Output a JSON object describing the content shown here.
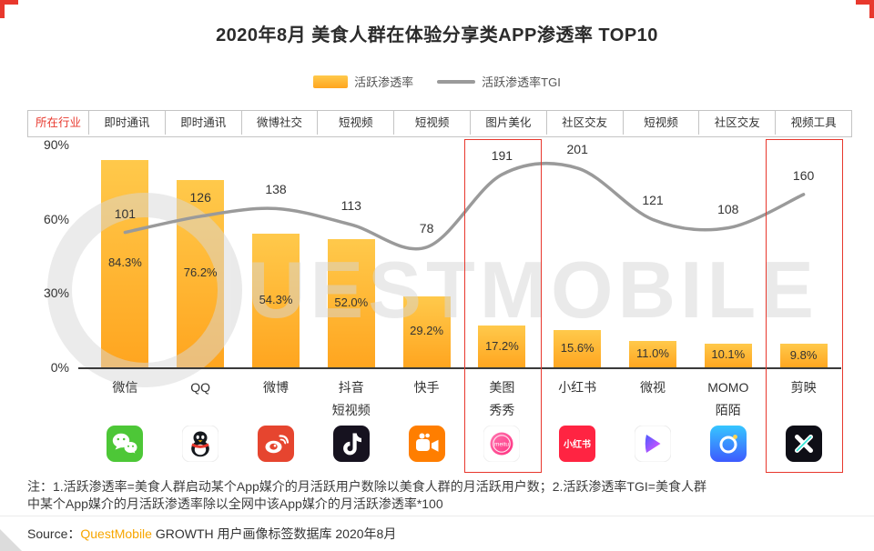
{
  "slide": {
    "title": "2020年8月 美食人群在体验分享类APP渗透率 TOP10",
    "watermark": "QUESTMOBILE",
    "note_lines": [
      "注：1.活跃渗透率=美食人群启动某个App媒介的月活跃用户数除以美食人群的月活跃用户数；2.活跃渗透率TGI=美食人群",
      "中某个App媒介的月活跃渗透率除以全网中该App媒介的月活跃渗透率*100"
    ],
    "source_prefix": "Source：",
    "source_brand": "QuestMobile",
    "source_suffix": " GROWTH 用户画像标签数据库 2020年8月"
  },
  "legend": {
    "bar_label": "活跃渗透率",
    "line_label": "活跃渗透率TGI"
  },
  "industry_row": {
    "label": "所在行业",
    "cells": [
      "即时通讯",
      "即时通讯",
      "微博社交",
      "短视频",
      "短视频",
      "图片美化",
      "社区交友",
      "短视频",
      "社区交友",
      "视频工具"
    ]
  },
  "chart_data": {
    "type": "bar",
    "title": "2020年8月 美食人群在体验分享类APP渗透率 TOP10",
    "categories": [
      "微信",
      "QQ",
      "微博",
      "抖音短视频",
      "快手",
      "美图秀秀",
      "小红书",
      "微视",
      "MOMO陌陌",
      "剪映"
    ],
    "category_display_lines": [
      [
        "微信"
      ],
      [
        "QQ"
      ],
      [
        "微博"
      ],
      [
        "抖音",
        "短视频"
      ],
      [
        "快手"
      ],
      [
        "美图",
        "秀秀"
      ],
      [
        "小红书"
      ],
      [
        "微视"
      ],
      [
        "MOMO",
        "陌陌"
      ],
      [
        "剪映"
      ]
    ],
    "app_keys": [
      "wechat",
      "qq",
      "weibo",
      "douyin",
      "kuaishou",
      "meitu",
      "xiaohongshu",
      "weishi",
      "momo",
      "jianying"
    ],
    "series": [
      {
        "name": "活跃渗透率",
        "type": "bar",
        "unit": "%",
        "values": [
          84.3,
          76.2,
          54.3,
          52.0,
          29.2,
          17.2,
          15.6,
          11.0,
          10.1,
          9.8
        ],
        "labels": [
          "84.3%",
          "76.2%",
          "54.3%",
          "52.0%",
          "29.2%",
          "17.2%",
          "15.6%",
          "11.0%",
          "10.1%",
          "9.8%"
        ]
      },
      {
        "name": "活跃渗透率TGI",
        "type": "line",
        "values": [
          101,
          126,
          138,
          113,
          78,
          191,
          201,
          121,
          108,
          160
        ],
        "labels": [
          "101",
          "126",
          "138",
          "113",
          "78",
          "191",
          "201",
          "121",
          "108",
          "160"
        ]
      }
    ],
    "y_axis": {
      "min": 0,
      "max": 90,
      "tick_labels": [
        "90%",
        "60%",
        "30%",
        "0%"
      ],
      "tick_values": [
        90,
        60,
        30,
        0
      ]
    },
    "ylim": [
      0,
      90
    ],
    "grid": false,
    "legend_position": "top",
    "highlight_indices": [
      5,
      9
    ],
    "colors": {
      "bar_top": "#FFC94B",
      "bar_bottom": "#FFA51F",
      "line": "#9A9A9A",
      "highlight_box": "#E8382D",
      "accent_red": "#E8382D",
      "brand_orange": "#F7A600"
    }
  }
}
